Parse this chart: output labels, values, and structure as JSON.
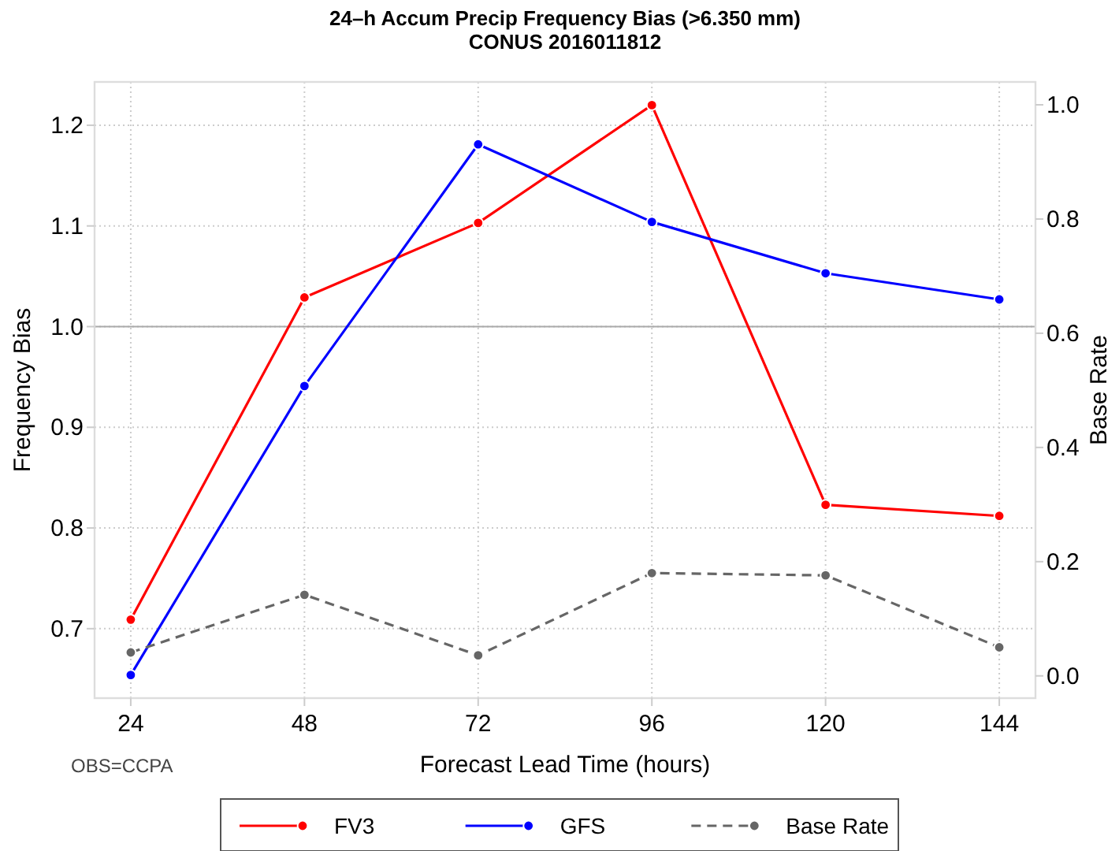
{
  "chart_data": {
    "type": "line",
    "title": "24–h Accum Precip Frequency Bias (>6.350 mm)",
    "subtitle": "CONUS 2016011812",
    "xlabel": "Forecast Lead Time (hours)",
    "ylabel": "Frequency Bias",
    "y2label": "Base Rate",
    "x": [
      24,
      48,
      72,
      96,
      120,
      144
    ],
    "series": [
      {
        "name": "FV3",
        "color": "#ff0000",
        "values": [
          0.709,
          1.029,
          1.103,
          1.22,
          0.823,
          0.812
        ]
      },
      {
        "name": "GFS",
        "color": "#0000ff",
        "values": [
          0.654,
          0.941,
          1.181,
          1.104,
          1.053,
          1.027
        ]
      },
      {
        "name": "Base Rate",
        "color": "#666666",
        "axis": "y2",
        "line_style": "dashed",
        "values": [
          0.041,
          0.142,
          0.036,
          0.18,
          0.176,
          0.05
        ]
      }
    ],
    "xlim": [
      19,
      149
    ],
    "xticks": [
      24,
      48,
      72,
      96,
      120,
      144
    ],
    "ylim": [
      0.631,
      1.243
    ],
    "yticks": [
      0.7,
      0.8,
      0.9,
      "1.0",
      1.1,
      1.2
    ],
    "y2lim": [
      -0.039,
      1.04
    ],
    "y2ticks": [
      {
        "value": 0,
        "label": "0.0"
      },
      0.2,
      0.4,
      0.6,
      0.8,
      {
        "value": 1,
        "label": "1.0"
      }
    ],
    "ref_lines": [
      {
        "axis": "y",
        "value": 1,
        "color": "#aaaaaa"
      }
    ],
    "annotations": [
      "OBS=CCPA"
    ],
    "grid": true,
    "legend": "bottom",
    "marker": "circle",
    "line_style": "solid"
  }
}
